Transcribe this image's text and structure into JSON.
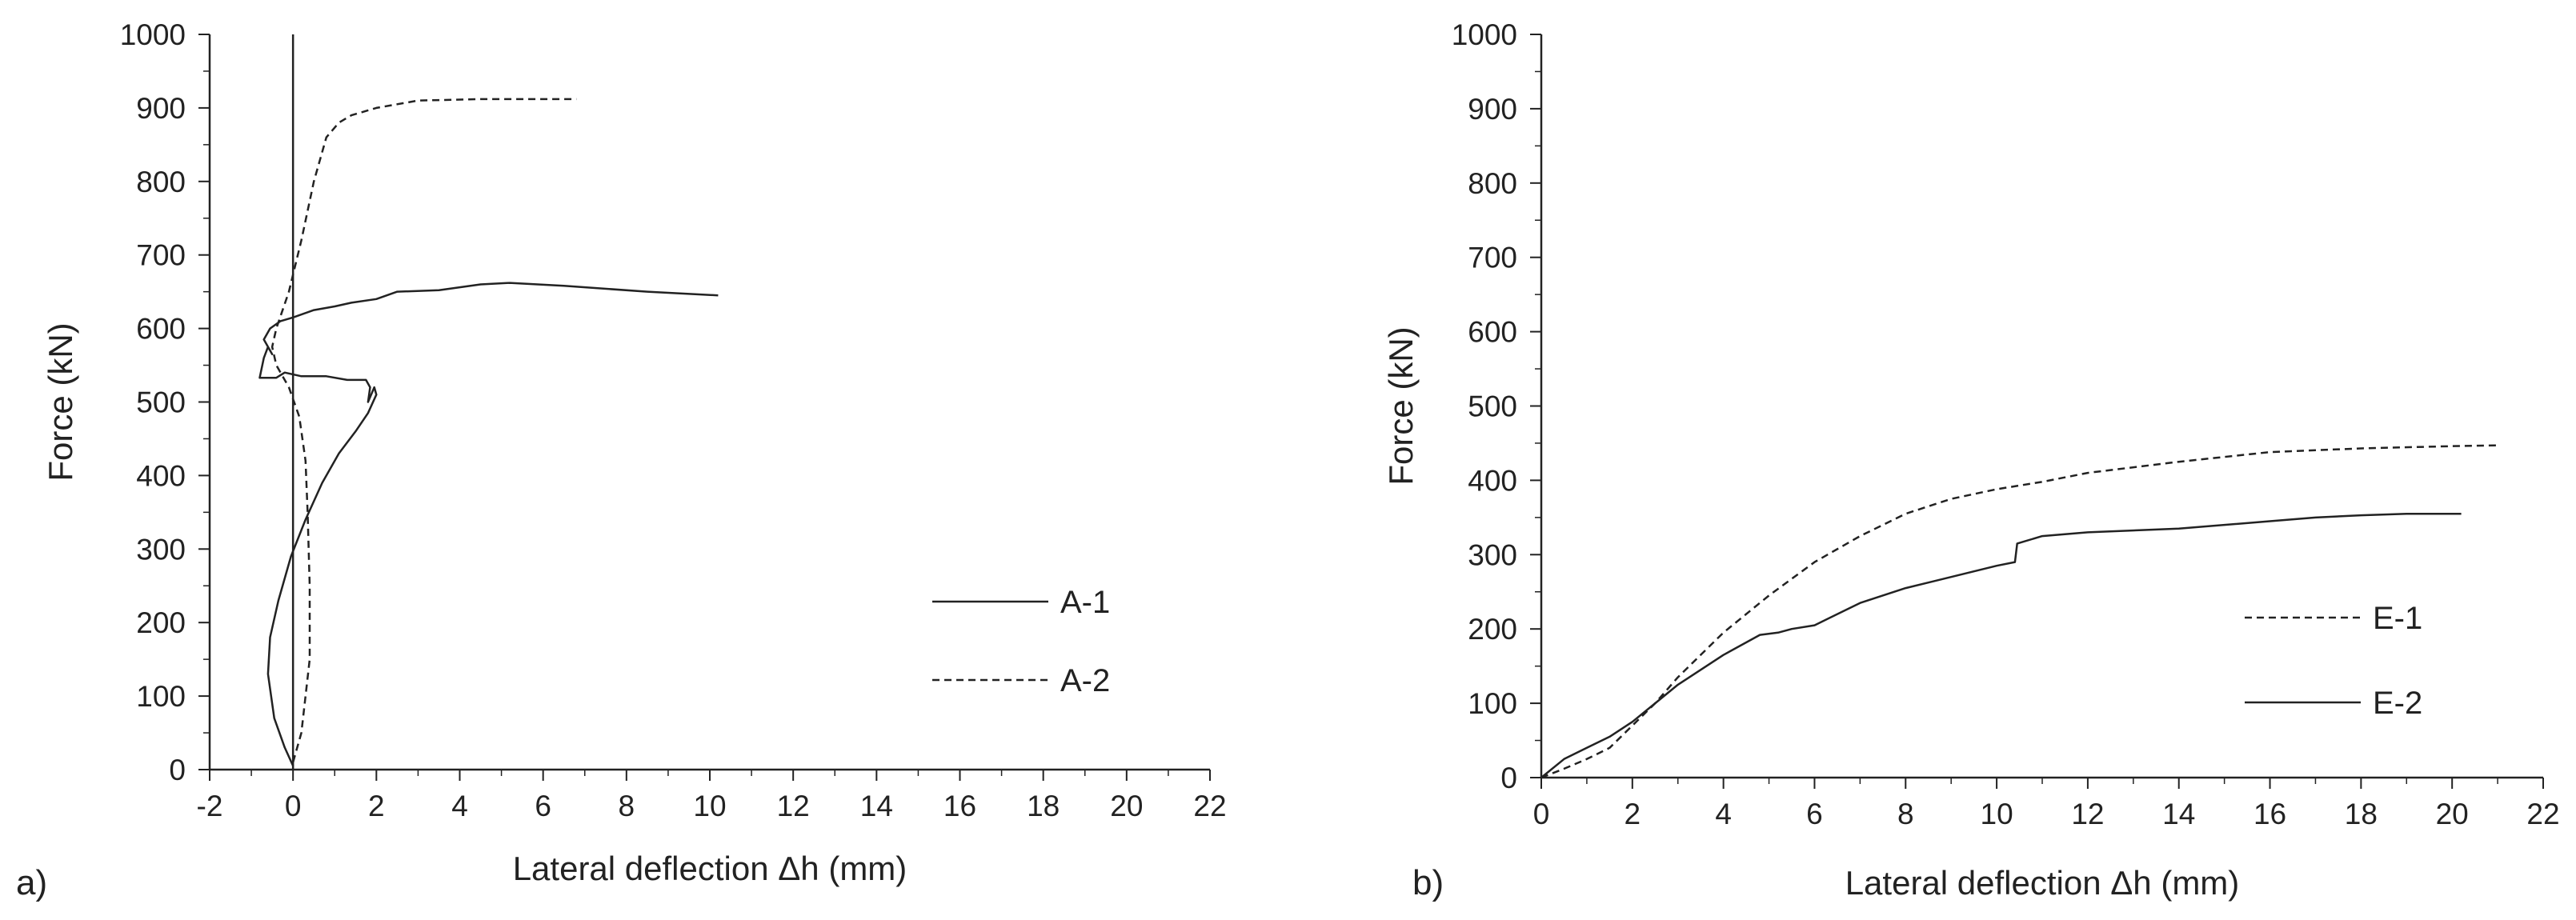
{
  "chart_data": [
    {
      "type": "line",
      "panel_label": "a)",
      "title": "",
      "xlabel": "Lateral deflection Δh (mm)",
      "ylabel": "Force (kN)",
      "xlim": [
        -2,
        22
      ],
      "ylim": [
        0,
        1000
      ],
      "xticks": [
        "-2",
        "0",
        "2",
        "4",
        "6",
        "8",
        "10",
        "12",
        "14",
        "16",
        "18",
        "20",
        "22"
      ],
      "yticks": [
        "0",
        "100",
        "200",
        "300",
        "400",
        "500",
        "600",
        "700",
        "800",
        "900",
        "1000"
      ],
      "grid": false,
      "legend_position": "right-middle",
      "reference_line_x": 0,
      "series": [
        {
          "name": "A-1",
          "style": "solid",
          "x": [
            0.0,
            -0.2,
            -0.45,
            -0.6,
            -0.55,
            -0.35,
            -0.05,
            0.3,
            0.7,
            1.1,
            1.5,
            1.8,
            2.0,
            1.95,
            1.8,
            1.85,
            1.75,
            1.3,
            0.8,
            0.2,
            -0.2,
            -0.4,
            -0.8,
            -0.7,
            -0.6,
            -0.5,
            -0.7,
            -0.55,
            -0.3,
            0.0,
            0.5,
            1.0,
            1.4,
            2.0,
            2.5,
            3.5,
            4.5,
            5.2,
            6.5,
            8.5,
            10.2
          ],
          "y": [
            5,
            30,
            70,
            130,
            180,
            230,
            290,
            340,
            390,
            430,
            460,
            485,
            510,
            520,
            500,
            520,
            530,
            530,
            535,
            535,
            540,
            533,
            533,
            560,
            575,
            565,
            585,
            600,
            610,
            615,
            625,
            630,
            635,
            640,
            650,
            652,
            660,
            662,
            658,
            650,
            645
          ]
        },
        {
          "name": "A-2",
          "style": "dashed",
          "x": [
            0.0,
            0.2,
            0.3,
            0.4,
            0.4,
            0.35,
            0.3,
            0.15,
            -0.1,
            -0.4,
            -0.5,
            -0.4,
            -0.1,
            0.2,
            0.5,
            0.8,
            1.1,
            1.4,
            2.0,
            3.0,
            4.5,
            6.8
          ],
          "y": [
            10,
            50,
            100,
            150,
            250,
            350,
            420,
            480,
            520,
            550,
            575,
            600,
            650,
            720,
            800,
            860,
            880,
            890,
            900,
            910,
            912,
            912
          ]
        }
      ]
    },
    {
      "type": "line",
      "panel_label": "b)",
      "title": "",
      "xlabel": "Lateral deflection Δh (mm)",
      "ylabel": "Force (kN)",
      "xlim": [
        0,
        22
      ],
      "ylim": [
        0,
        1000
      ],
      "xticks": [
        "0",
        "2",
        "4",
        "6",
        "8",
        "10",
        "12",
        "14",
        "16",
        "18",
        "20",
        "22"
      ],
      "yticks": [
        "0",
        "100",
        "200",
        "300",
        "400",
        "500",
        "600",
        "700",
        "800",
        "900",
        "1000"
      ],
      "grid": false,
      "legend_position": "right-lower",
      "series": [
        {
          "name": "E-1",
          "style": "dashed",
          "x": [
            0,
            0.5,
            1.0,
            1.5,
            2.0,
            2.5,
            3.0,
            4.0,
            5.0,
            6.0,
            7.0,
            8.0,
            9.0,
            10.0,
            11.0,
            12.0,
            14.0,
            16.0,
            18.0,
            20.0,
            21.0
          ],
          "y": [
            0,
            12,
            25,
            40,
            70,
            100,
            135,
            195,
            245,
            290,
            325,
            355,
            375,
            388,
            398,
            410,
            425,
            438,
            443,
            446,
            447
          ]
        },
        {
          "name": "E-2",
          "style": "solid",
          "x": [
            0,
            0.5,
            1.0,
            1.5,
            2.0,
            2.5,
            3.0,
            4.0,
            4.8,
            5.2,
            5.5,
            6.0,
            7.0,
            8.0,
            9.0,
            10.0,
            10.4,
            10.45,
            11.0,
            12.0,
            14.0,
            16.0,
            17.0,
            18.0,
            19.0,
            20.2
          ],
          "y": [
            0,
            25,
            40,
            55,
            75,
            100,
            125,
            165,
            192,
            195,
            200,
            205,
            235,
            255,
            270,
            285,
            290,
            315,
            325,
            330,
            335,
            345,
            350,
            353,
            355,
            355
          ]
        }
      ]
    }
  ]
}
